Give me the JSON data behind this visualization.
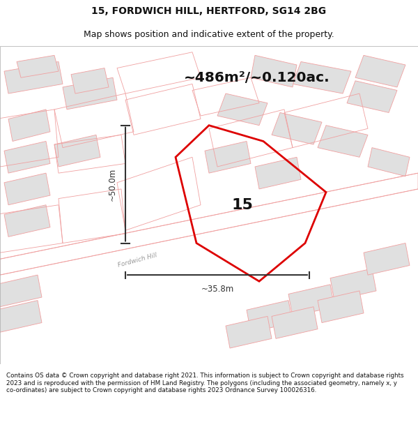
{
  "title_line1": "15, FORDWICH HILL, HERTFORD, SG14 2BG",
  "title_line2": "Map shows position and indicative extent of the property.",
  "area_text": "~486m²/~0.120ac.",
  "label_number": "15",
  "dim_height": "~50.0m",
  "dim_width": "~35.8m",
  "road_label": "Fordwich Hill",
  "footer_text": "Contains OS data © Crown copyright and database right 2021. This information is subject to Crown copyright and database rights 2023 and is reproduced with the permission of HM Land Registry. The polygons (including the associated geometry, namely x, y co-ordinates) are subject to Crown copyright and database rights 2023 Ordnance Survey 100026316.",
  "background_color": "#f5f5f5",
  "map_bg": "#f8f8f8",
  "plot_outline_color": "#dd0000",
  "other_outline_color": "#f0a0a0",
  "building_fill": "#e8e8e8",
  "road_color": "#ffffff",
  "dim_color": "#333333",
  "footer_bg": "#ffffff",
  "title_bg": "#ffffff"
}
